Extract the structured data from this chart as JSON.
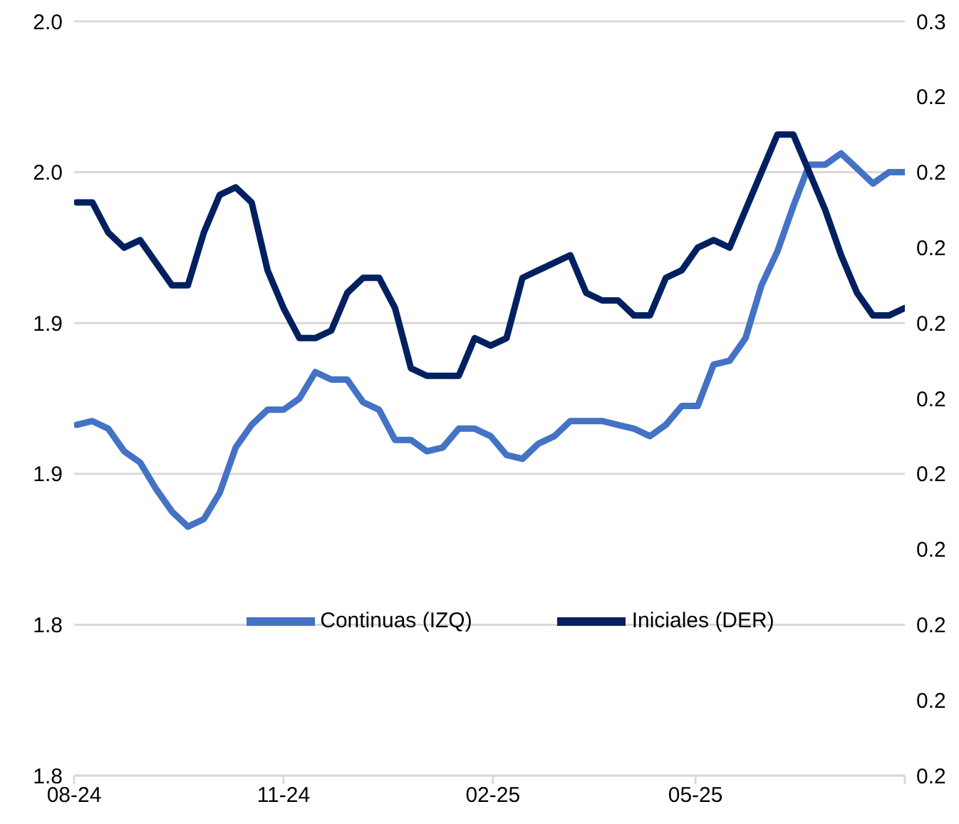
{
  "chart_data": {
    "type": "line",
    "x": [
      "2024-08-02",
      "2024-08-09",
      "2024-08-16",
      "2024-08-23",
      "2024-08-30",
      "2024-09-06",
      "2024-09-13",
      "2024-09-20",
      "2024-09-27",
      "2024-10-04",
      "2024-10-11",
      "2024-10-18",
      "2024-10-25",
      "2024-11-01",
      "2024-11-08",
      "2024-11-15",
      "2024-11-22",
      "2024-11-29",
      "2024-12-06",
      "2024-12-13",
      "2024-12-20",
      "2024-12-27",
      "2025-01-03",
      "2025-01-10",
      "2025-01-17",
      "2025-01-24",
      "2025-01-31",
      "2025-02-07",
      "2025-02-14",
      "2025-02-21",
      "2025-02-28",
      "2025-03-07",
      "2025-03-14",
      "2025-03-21",
      "2025-03-28",
      "2025-04-04",
      "2025-04-11",
      "2025-04-18",
      "2025-04-25",
      "2025-05-02",
      "2025-05-09",
      "2025-05-16",
      "2025-05-23",
      "2025-05-30",
      "2025-06-06",
      "2025-06-13",
      "2025-06-20",
      "2025-06-27",
      "2025-07-04",
      "2025-07-11",
      "2025-07-18",
      "2025-07-25",
      "2025-08-01"
    ],
    "series": [
      {
        "name": "Continuas (IZQ)",
        "color": "#4472c4",
        "values": [
          1.893,
          1.894,
          1.892,
          1.886,
          1.883,
          1.876,
          1.87,
          1.866,
          1.868,
          1.875,
          1.887,
          1.893,
          1.897,
          1.897,
          1.9,
          1.907,
          1.905,
          1.905,
          1.899,
          1.897,
          1.889,
          1.889,
          1.886,
          1.887,
          1.892,
          1.892,
          1.89,
          1.885,
          1.884,
          1.888,
          1.89,
          1.894,
          1.894,
          1.894,
          1.893,
          1.892,
          1.89,
          1.893,
          1.898,
          1.898,
          1.909,
          1.91,
          1.916,
          1.93,
          1.939,
          1.951,
          1.962,
          1.962,
          1.965,
          1.961,
          1.957,
          1.96,
          1.96
        ]
      },
      {
        "name": "Iniciales (DER)",
        "color": "#002060",
        "axis": "y2",
        "values": [
          0.238,
          0.238,
          0.236,
          0.235,
          0.2355,
          0.234,
          0.2325,
          0.2325,
          0.236,
          0.2385,
          0.239,
          0.238,
          0.2335,
          0.231,
          0.229,
          0.229,
          0.2295,
          0.232,
          0.233,
          0.233,
          0.231,
          0.227,
          0.2265,
          0.2265,
          0.2265,
          0.229,
          0.2285,
          0.229,
          0.233,
          0.2335,
          0.234,
          0.2345,
          0.232,
          0.2315,
          0.2315,
          0.2305,
          0.2305,
          0.233,
          0.2335,
          0.235,
          0.2355,
          0.235,
          0.2375,
          0.24,
          0.2425,
          0.2425,
          0.24,
          0.2375,
          0.2345,
          0.232,
          0.2305,
          0.2305,
          0.231
        ]
      }
    ],
    "xlim": [
      "2024-08-01",
      "2025-08-01"
    ],
    "xticks": [
      {
        "value": "2024-08-01",
        "label": "08-24"
      },
      {
        "value": "2024-11-01",
        "label": "11-24"
      },
      {
        "value": "2025-02-01",
        "label": "02-25"
      },
      {
        "value": "2025-05-01",
        "label": "05-25"
      },
      {
        "value": "2025-08-01",
        "label": null
      }
    ],
    "ylim": [
      1.8,
      2.0
    ],
    "yticks": [
      {
        "value": 1.8,
        "label": "1.8"
      },
      {
        "value": 1.84,
        "label": "1.8"
      },
      {
        "value": 1.88,
        "label": "1.9"
      },
      {
        "value": 1.92,
        "label": "1.9"
      },
      {
        "value": 1.96,
        "label": "2.0"
      },
      {
        "value": 2.0,
        "label": "2.0"
      }
    ],
    "y2lim": [
      0.2,
      0.25
    ],
    "y2ticks": [
      {
        "value": 0.2,
        "label": "0.2"
      },
      {
        "value": 0.205,
        "label": "0.2"
      },
      {
        "value": 0.21,
        "label": "0.2"
      },
      {
        "value": 0.215,
        "label": "0.2"
      },
      {
        "value": 0.22,
        "label": "0.2"
      },
      {
        "value": 0.225,
        "label": "0.2"
      },
      {
        "value": 0.23,
        "label": "0.2"
      },
      {
        "value": 0.235,
        "label": "0.2"
      },
      {
        "value": 0.24,
        "label": "0.2"
      },
      {
        "value": 0.245,
        "label": "0.2"
      },
      {
        "value": 0.25,
        "label": "0.3"
      }
    ],
    "grid": "y",
    "legend": "bottom",
    "marker": "none",
    "line_style": "solid"
  }
}
